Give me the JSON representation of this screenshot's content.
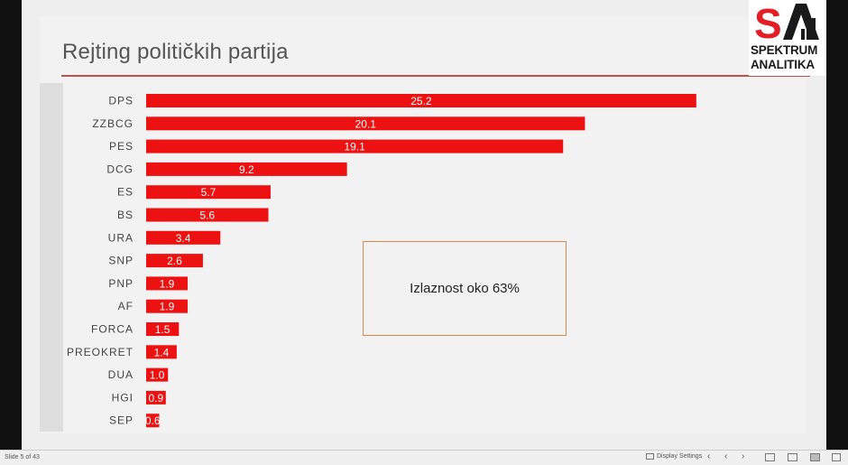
{
  "slide": {
    "title": "Rejting političkih partija",
    "textbox": "Izlaznost oko 63%"
  },
  "logo": {
    "mark": "SA",
    "line1": "SPEKTRUM",
    "line2": "ANALITIKA",
    "accent_color": "#e31e24"
  },
  "statusbar": {
    "slide_info": "Slide 5 of 43",
    "display_settings": "Display Settings",
    "prev_icon": "chevron-left-icon",
    "next_icon": "chevron-right-icon"
  },
  "chart_data": {
    "type": "bar",
    "orientation": "horizontal",
    "categories": [
      "DPS",
      "ZZBCG",
      "PES",
      "DCG",
      "ES",
      "BS",
      "URA",
      "SNP",
      "PNP",
      "AF",
      "FORCA",
      "PREOKRET",
      "DUA",
      "HGI",
      "SEP"
    ],
    "values": [
      25.2,
      20.1,
      19.1,
      9.2,
      5.7,
      5.6,
      3.4,
      2.6,
      1.9,
      1.9,
      1.5,
      1.4,
      1.0,
      0.9,
      0.6
    ],
    "labels": [
      "25.2",
      "20.1",
      "19.1",
      "9.2",
      "5.7",
      "5.6",
      "3.4",
      "2.6",
      "1.9",
      "1.9",
      "1.5",
      "1.4",
      "1.0",
      "0.9",
      "0.6"
    ],
    "bar_color": "#ee1111",
    "grid": false,
    "legend": "none"
  }
}
